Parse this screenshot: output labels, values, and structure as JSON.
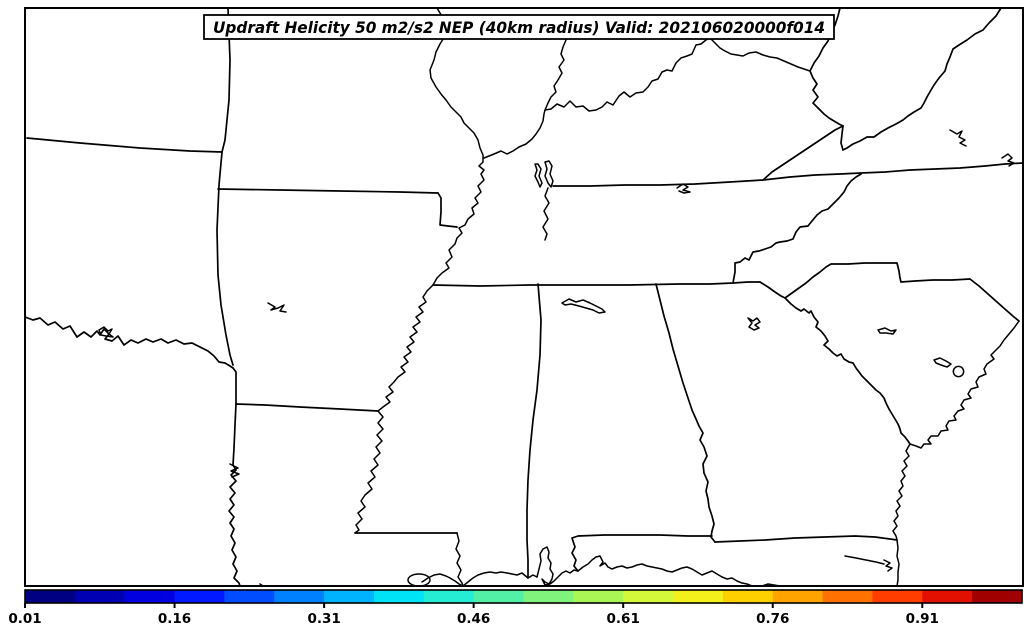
{
  "figure": {
    "title": "Updraft Helicity 50 m2/s2 NEP (40km radius) Valid: 202106020000f014",
    "background_color": "#ffffff",
    "line_color": "#000000"
  },
  "map": {
    "description": "Southeastern United States state boundaries with rivers, lakes and coastline; no probability contours shown on map area",
    "visible_states": [
      "Missouri",
      "Illinois",
      "Indiana",
      "Kentucky",
      "West Virginia",
      "Virginia",
      "Tennessee",
      "North Carolina",
      "Oklahoma",
      "Arkansas",
      "Texas",
      "Louisiana",
      "Mississippi",
      "Alabama",
      "Georgia",
      "South Carolina",
      "Florida"
    ]
  },
  "colorbar": {
    "orientation": "horizontal",
    "units": "probability",
    "min": 0.01,
    "max": 1.01,
    "n_segments": 20,
    "segment_step": 0.05,
    "segment_colors": [
      "#000083",
      "#0000B3",
      "#0000E1",
      "#0019FF",
      "#004DFF",
      "#0081FF",
      "#00B3FF",
      "#00E3F7",
      "#24EDD3",
      "#52F0A6",
      "#7FF37B",
      "#AAF654",
      "#D3F93A",
      "#F4F01C",
      "#FFD000",
      "#FFA300",
      "#FF7100",
      "#FF3D00",
      "#E21000",
      "#A00000"
    ],
    "tick_labels": [
      "0.01",
      "0.16",
      "0.31",
      "0.46",
      "0.61",
      "0.76",
      "0.91"
    ],
    "tick_values": [
      0.01,
      0.16,
      0.31,
      0.46,
      0.61,
      0.76,
      0.91
    ]
  }
}
